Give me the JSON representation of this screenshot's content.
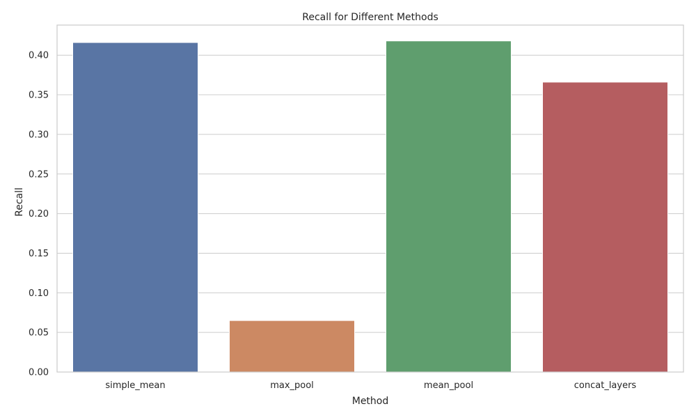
{
  "chart_data": {
    "type": "bar",
    "title": "Recall for Different Methods",
    "xlabel": "Method",
    "ylabel": "Recall",
    "categories": [
      "simple_mean",
      "max_pool",
      "mean_pool",
      "concat_layers"
    ],
    "values": [
      0.416,
      0.065,
      0.418,
      0.366
    ],
    "ylim": [
      0,
      0.438
    ],
    "yticks": [
      0.0,
      0.05,
      0.1,
      0.15,
      0.2,
      0.25,
      0.3,
      0.35,
      0.4
    ],
    "ytick_labels": [
      "0.00",
      "0.05",
      "0.10",
      "0.15",
      "0.20",
      "0.25",
      "0.30",
      "0.35",
      "0.40"
    ],
    "colors": [
      "#5975a4",
      "#cc8963",
      "#5f9e6e",
      "#b55d60"
    ],
    "grid": true,
    "grid_axis": "y",
    "legend": "none"
  }
}
